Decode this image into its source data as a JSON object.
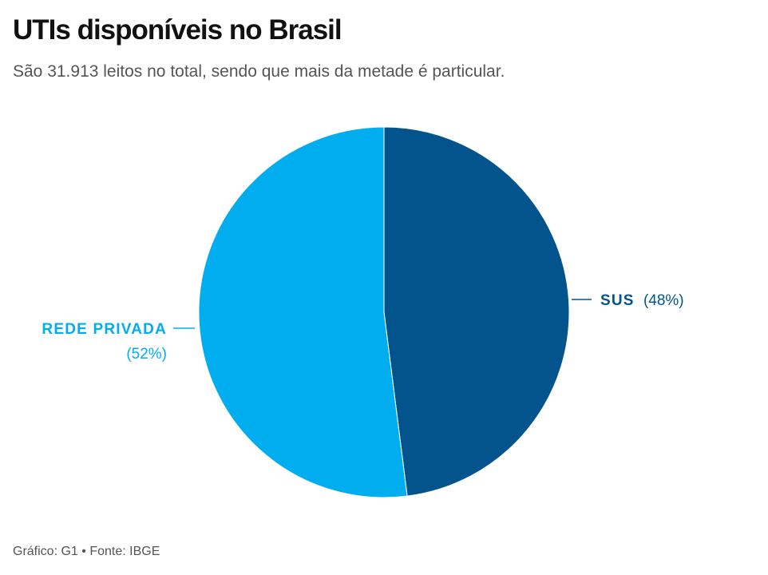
{
  "header": {
    "title": "UTIs disponíveis no Brasil",
    "subtitle": "São 31.913 leitos no total, sendo que mais da metade é particular."
  },
  "footer": {
    "credit": "Gráfico: G1",
    "separator": "•",
    "source": "Fonte: IBGE"
  },
  "colors": {
    "sus": "#03548C",
    "rede_privada": "#00AEEF",
    "slice_border": "#ffffff"
  },
  "chart_data": {
    "type": "pie",
    "title": "UTIs disponíveis no Brasil",
    "slices": [
      {
        "label": "SUS",
        "value": 48,
        "value_label": "(48%)",
        "color": "#03548C"
      },
      {
        "label": "REDE PRIVADA",
        "value": 52,
        "value_label": "(52%)",
        "color": "#00AEEF"
      }
    ],
    "start_angle_deg": 0,
    "direction": "clockwise",
    "legend": "none",
    "labels": "outside-with-leader-lines"
  }
}
